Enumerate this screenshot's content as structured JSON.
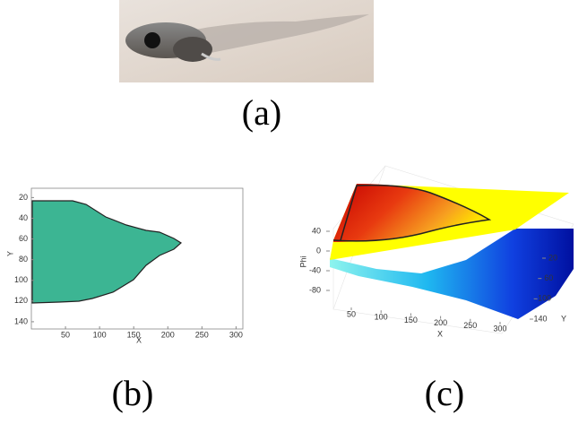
{
  "panels": {
    "a": {
      "label": "(a)"
    },
    "b": {
      "label": "(b)",
      "xlabel": "X",
      "ylabel": "Y",
      "xlim": [
        0,
        310
      ],
      "ylim": [
        11,
        147
      ],
      "xticks": [
        50,
        100,
        150,
        200,
        250,
        300
      ],
      "yticks": [
        20,
        40,
        60,
        80,
        100,
        120,
        140
      ]
    },
    "c": {
      "label": "(c)",
      "xlabel": "X",
      "ylabel": "Y",
      "zlabel": "Phi",
      "xticks": [
        50,
        100,
        150,
        200,
        250,
        300
      ],
      "yticks": [
        20,
        60,
        100,
        140
      ],
      "zticks": [
        40,
        0,
        -40,
        -80
      ]
    }
  }
}
